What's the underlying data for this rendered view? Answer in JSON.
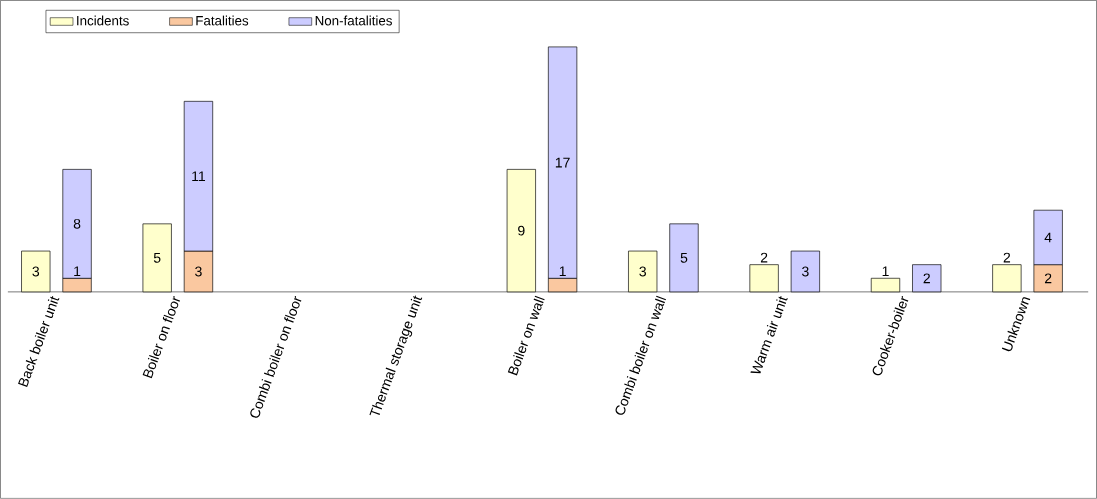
{
  "chart_data": {
    "type": "bar",
    "stacked": true,
    "data_labels": true,
    "legend": "top left",
    "categories": [
      "Back boiler unit",
      "Boiler on floor",
      "Combi boiler on floor",
      "Thermal storage unit",
      "Boiler on wall",
      "Combi boiler on wall",
      "Warm air unit",
      "Cooker-boiler",
      "Unknown"
    ],
    "series": [
      {
        "name": "Incidents",
        "color": "#ffffcc",
        "axis": "y2",
        "values": [
          3,
          5,
          null,
          null,
          9,
          3,
          2,
          1,
          2
        ]
      },
      {
        "name": "Fatalities",
        "color": "#fac8a0",
        "values": [
          1,
          3,
          null,
          null,
          1,
          null,
          null,
          null,
          2
        ]
      },
      {
        "name": "Non-fatalities",
        "color": "#ccccff",
        "values": [
          8,
          11,
          null,
          null,
          17,
          5,
          3,
          2,
          4
        ]
      }
    ]
  }
}
